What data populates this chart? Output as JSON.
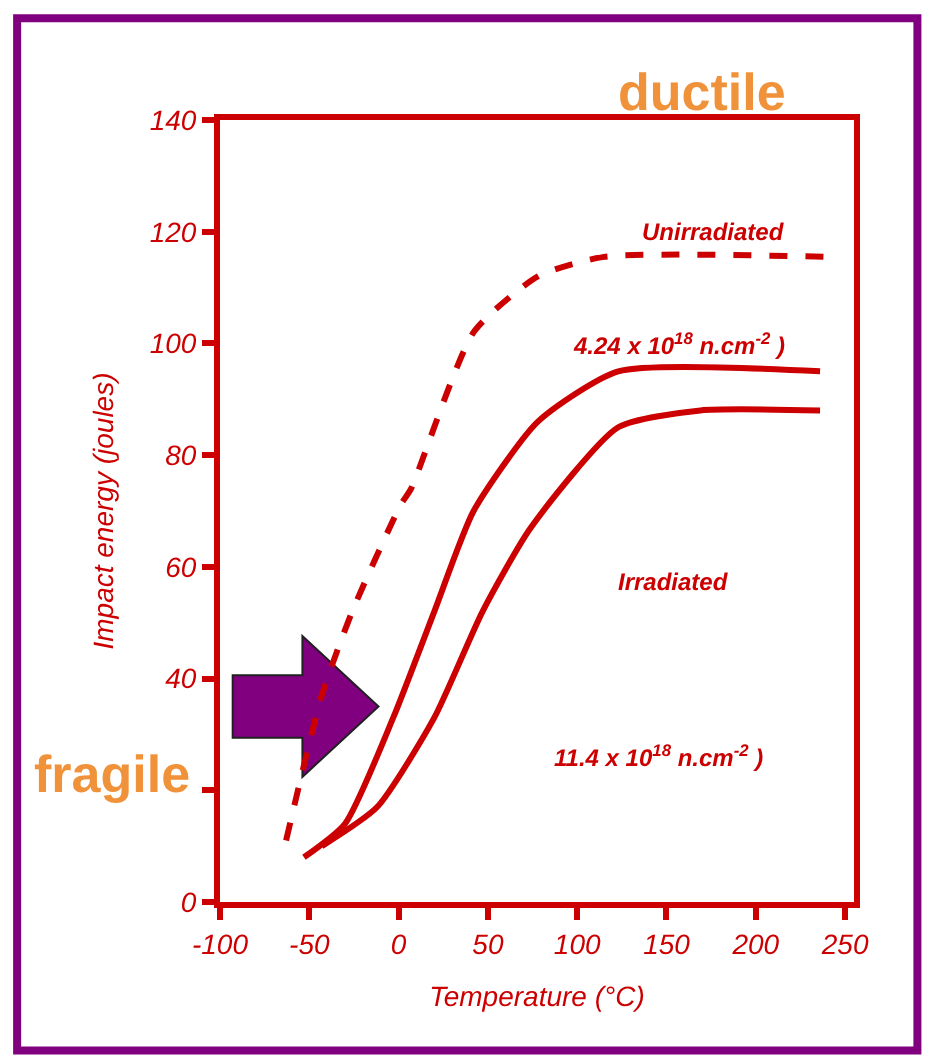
{
  "chart_data": {
    "type": "line",
    "xlabel": "Temperature (°C)",
    "ylabel": "Impact energy (joules)",
    "xlim": [
      -100,
      255
    ],
    "ylim": [
      0,
      140
    ],
    "xticks": [
      -100,
      -50,
      0,
      50,
      100,
      150,
      200,
      250
    ],
    "yticks": [
      0,
      {
        "value": 20,
        "label": null
      },
      40,
      60,
      80,
      100,
      120,
      140
    ],
    "grid": false,
    "marker": "none",
    "series": [
      {
        "color": "#cc0000",
        "line_style": "dashed",
        "x": [
          -63,
          -43,
          -26,
          1,
          7,
          42,
          78,
          115,
          240
        ],
        "values": [
          11,
          37,
          52,
          71,
          74,
          102,
          112,
          115.5,
          115.5
        ]
      },
      {
        "color": "#cc0000",
        "line_style": "solid",
        "x": [
          -53,
          -30,
          -3,
          20,
          42,
          78,
          123,
          236
        ],
        "values": [
          8,
          14,
          33,
          52,
          70,
          86,
          95,
          95
        ]
      },
      {
        "color": "#cc0000",
        "line_style": "solid",
        "x": [
          -43,
          -12,
          20,
          47,
          74,
          123,
          169,
          236
        ],
        "values": [
          10,
          17,
          33,
          52,
          67,
          85,
          88,
          88
        ]
      }
    ],
    "annotations": [
      "Unirradiated",
      "4.24 x 10$^{18}$ n.cm$^{-2}$ )",
      "Irradiated",
      "11.4 x 10$^{18}$ n.cm$^{-2}$ )",
      "ductile",
      "fragile"
    ]
  }
}
